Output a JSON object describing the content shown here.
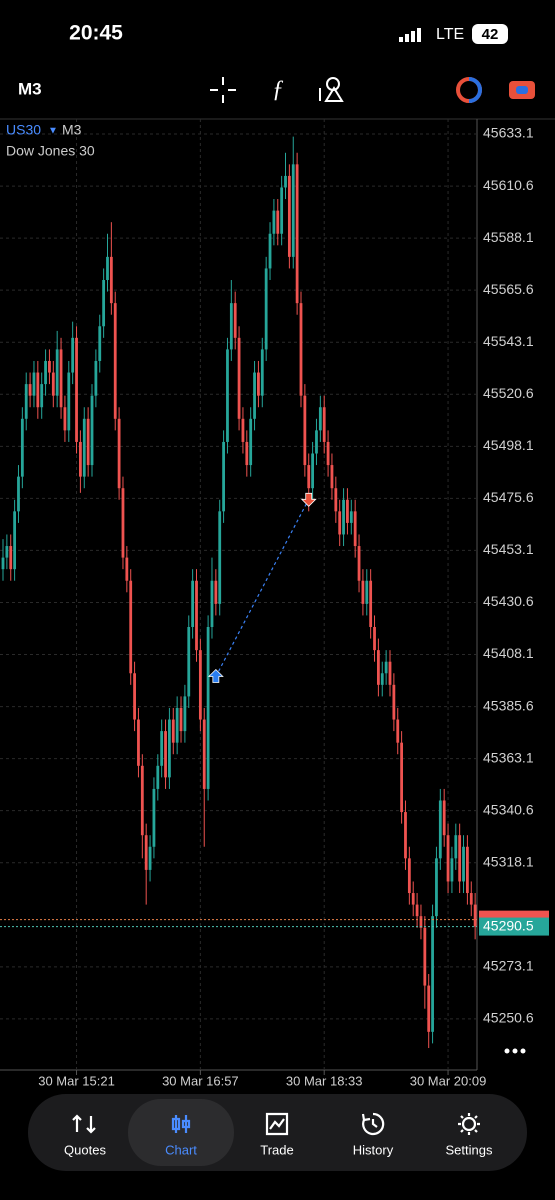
{
  "status": {
    "time": "20:45",
    "network": "LTE",
    "battery": "42"
  },
  "toolbar": {
    "timeframe": "M3"
  },
  "nav": {
    "items": [
      "Quotes",
      "Chart",
      "Trade",
      "History",
      "Settings"
    ],
    "active": 1
  },
  "chart_data": {
    "type": "candlestick",
    "symbol": "US30",
    "timeframe": "M3",
    "description": "Dow Jones 30",
    "up_color": "#26a69a",
    "down_color": "#ef5350",
    "grid": true,
    "ylim": [
      45228.5,
      45639.6
    ],
    "yticks": [
      45633.1,
      45610.6,
      45588.1,
      45565.6,
      45543.1,
      45520.6,
      45498.1,
      45475.6,
      45453.1,
      45430.6,
      45408.1,
      45385.6,
      45363.1,
      45340.6,
      45318.1,
      45273.1,
      45250.6
    ],
    "xlabels": [
      "30 Mar 15:21",
      "30 Mar 16:57",
      "30 Mar 18:33",
      "30 Mar 20:09"
    ],
    "bid": 45290.5,
    "ask": 45293.5,
    "buy_price": 45398.6,
    "sell_price": 45475.2,
    "candles": [
      [
        45445,
        45458,
        45440,
        45450
      ],
      [
        45450,
        45460,
        45445,
        45455
      ],
      [
        45455,
        45460,
        45440,
        45445
      ],
      [
        45445,
        45475,
        45440,
        45470
      ],
      [
        45470,
        45490,
        45465,
        45485
      ],
      [
        45485,
        45515,
        45480,
        45510
      ],
      [
        45510,
        45530,
        45505,
        45525
      ],
      [
        45525,
        45530,
        45515,
        45520
      ],
      [
        45520,
        45535,
        45515,
        45530
      ],
      [
        45530,
        45535,
        45510,
        45515
      ],
      [
        45515,
        45530,
        45510,
        45525
      ],
      [
        45525,
        45540,
        45520,
        45535
      ],
      [
        45535,
        45540,
        45525,
        45530
      ],
      [
        45530,
        45535,
        45515,
        45520
      ],
      [
        45520,
        45548,
        45515,
        45540
      ],
      [
        45540,
        45545,
        45510,
        45515
      ],
      [
        45515,
        45520,
        45500,
        45505
      ],
      [
        45505,
        45535,
        45500,
        45530
      ],
      [
        45530,
        45552,
        45525,
        45545
      ],
      [
        45545,
        45550,
        45495,
        45500
      ],
      [
        45500,
        45505,
        45478,
        45485
      ],
      [
        45485,
        45515,
        45480,
        45510
      ],
      [
        45510,
        45515,
        45485,
        45490
      ],
      [
        45490,
        45525,
        45485,
        45520
      ],
      [
        45520,
        45540,
        45515,
        45535
      ],
      [
        45535,
        45555,
        45530,
        45550
      ],
      [
        45550,
        45575,
        45545,
        45570
      ],
      [
        45570,
        45590,
        45565,
        45580
      ],
      [
        45580,
        45595,
        45555,
        45560
      ],
      [
        45560,
        45565,
        45505,
        45510
      ],
      [
        45510,
        45515,
        45475,
        45480
      ],
      [
        45480,
        45485,
        45445,
        45450
      ],
      [
        45450,
        45455,
        45435,
        45440
      ],
      [
        45440,
        45445,
        45395,
        45400
      ],
      [
        45400,
        45405,
        45375,
        45380
      ],
      [
        45380,
        45385,
        45355,
        45360
      ],
      [
        45360,
        45365,
        45320,
        45330
      ],
      [
        45330,
        45335,
        45300,
        45315
      ],
      [
        45315,
        45330,
        45310,
        45325
      ],
      [
        45325,
        45355,
        45320,
        45350
      ],
      [
        45350,
        45365,
        45345,
        45360
      ],
      [
        45360,
        45380,
        45355,
        45375
      ],
      [
        45375,
        45380,
        45350,
        45355
      ],
      [
        45355,
        45385,
        45350,
        45380
      ],
      [
        45380,
        45385,
        45365,
        45370
      ],
      [
        45370,
        45390,
        45365,
        45385
      ],
      [
        45385,
        45390,
        45370,
        45375
      ],
      [
        45375,
        45395,
        45370,
        45390
      ],
      [
        45390,
        45425,
        45385,
        45420
      ],
      [
        45420,
        45445,
        45415,
        45440
      ],
      [
        45440,
        45445,
        45405,
        45410
      ],
      [
        45410,
        45415,
        45375,
        45380
      ],
      [
        45380,
        45385,
        45325,
        45350
      ],
      [
        45350,
        45425,
        45345,
        45420
      ],
      [
        45420,
        45450,
        45415,
        45440
      ],
      [
        45440,
        45445,
        45425,
        45430
      ],
      [
        45430,
        45475,
        45425,
        45470
      ],
      [
        45470,
        45505,
        45465,
        45500
      ],
      [
        45500,
        45545,
        45495,
        45540
      ],
      [
        45540,
        45570,
        45535,
        45560
      ],
      [
        45560,
        45565,
        45540,
        45545
      ],
      [
        45545,
        45550,
        45505,
        45510
      ],
      [
        45510,
        45515,
        45495,
        45500
      ],
      [
        45500,
        45505,
        45485,
        45490
      ],
      [
        45490,
        45515,
        45485,
        45510
      ],
      [
        45510,
        45535,
        45505,
        45530
      ],
      [
        45530,
        45535,
        45515,
        45520
      ],
      [
        45520,
        45545,
        45515,
        45540
      ],
      [
        45540,
        45580,
        45535,
        45575
      ],
      [
        45575,
        45595,
        45570,
        45590
      ],
      [
        45590,
        45605,
        45585,
        45600
      ],
      [
        45600,
        45605,
        45585,
        45590
      ],
      [
        45590,
        45615,
        45585,
        45610
      ],
      [
        45610,
        45625,
        45605,
        45615
      ],
      [
        45615,
        45620,
        45575,
        45580
      ],
      [
        45580,
        45632,
        45575,
        45620
      ],
      [
        45620,
        45625,
        45555,
        45560
      ],
      [
        45560,
        45565,
        45515,
        45520
      ],
      [
        45520,
        45525,
        45485,
        45490
      ],
      [
        45490,
        45495,
        45470,
        45480
      ],
      [
        45480,
        45500,
        45475,
        45495
      ],
      [
        45495,
        45510,
        45490,
        45505
      ],
      [
        45505,
        45520,
        45500,
        45515
      ],
      [
        45515,
        45520,
        45495,
        45500
      ],
      [
        45500,
        45505,
        45485,
        45490
      ],
      [
        45490,
        45495,
        45475,
        45480
      ],
      [
        45480,
        45485,
        45465,
        45470
      ],
      [
        45470,
        45475,
        45455,
        45460
      ],
      [
        45460,
        45480,
        45455,
        45475
      ],
      [
        45475,
        45480,
        45460,
        45465
      ],
      [
        45465,
        45475,
        45460,
        45470
      ],
      [
        45470,
        45475,
        45450,
        45455
      ],
      [
        45455,
        45460,
        45435,
        45440
      ],
      [
        45440,
        45445,
        45425,
        45430
      ],
      [
        45430,
        45445,
        45425,
        45440
      ],
      [
        45440,
        45445,
        45415,
        45420
      ],
      [
        45420,
        45425,
        45405,
        45410
      ],
      [
        45410,
        45415,
        45390,
        45395
      ],
      [
        45395,
        45405,
        45390,
        45400
      ],
      [
        45400,
        45410,
        45395,
        45405
      ],
      [
        45405,
        45410,
        45390,
        45395
      ],
      [
        45395,
        45400,
        45375,
        45380
      ],
      [
        45380,
        45385,
        45365,
        45370
      ],
      [
        45370,
        45375,
        45335,
        45340
      ],
      [
        45340,
        45345,
        45315,
        45320
      ],
      [
        45320,
        45325,
        45300,
        45305
      ],
      [
        45305,
        45310,
        45295,
        45300
      ],
      [
        45300,
        45305,
        45290,
        45295
      ],
      [
        45295,
        45300,
        45285,
        45290
      ],
      [
        45290,
        45295,
        45255,
        45265
      ],
      [
        45265,
        45270,
        45238,
        45245
      ],
      [
        45245,
        45300,
        45240,
        45295
      ],
      [
        45295,
        45325,
        45290,
        45320
      ],
      [
        45320,
        45350,
        45315,
        45345
      ],
      [
        45345,
        45350,
        45325,
        45330
      ],
      [
        45330,
        45335,
        45305,
        45310
      ],
      [
        45310,
        45325,
        45305,
        45320
      ],
      [
        45320,
        45335,
        45315,
        45330
      ],
      [
        45330,
        45335,
        45305,
        45310
      ],
      [
        45310,
        45330,
        45305,
        45325
      ],
      [
        45325,
        45330,
        45300,
        45305
      ],
      [
        45305,
        45310,
        45295,
        45300
      ],
      [
        45300,
        45305,
        45285,
        45290.5
      ]
    ]
  }
}
